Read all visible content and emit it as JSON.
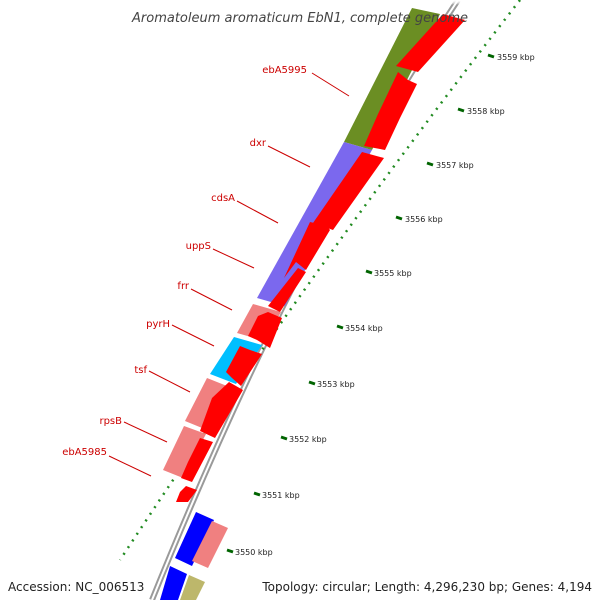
{
  "title": "Aromatoleum aromaticum EbN1, complete genome",
  "footer": {
    "accession": "Accession: NC_006513",
    "topology": "Topology: circular; Length: 4,296,230 bp; Genes: 4,194"
  },
  "gene_labels": [
    "ebA5995",
    "dxr",
    "cdsA",
    "uppS",
    "frr",
    "pyrH",
    "tsf",
    "rpsB",
    "ebA5985"
  ],
  "kbp_labels": [
    "3559 kbp",
    "3558 kbp",
    "3557 kbp",
    "3556 kbp",
    "3555 kbp",
    "3554 kbp",
    "3553 kbp",
    "3552 kbp",
    "3551 kbp",
    "3550 kbp"
  ],
  "colors": {
    "cds": "#ff0000",
    "olive": "#6b8e23",
    "slate": "#7b68ee",
    "pink": "#f08080",
    "cyan": "#00bfff",
    "blue": "#0000ff",
    "khaki": "#bdb76b",
    "gc_dots": "#228b22",
    "backbone": "#888888"
  }
}
